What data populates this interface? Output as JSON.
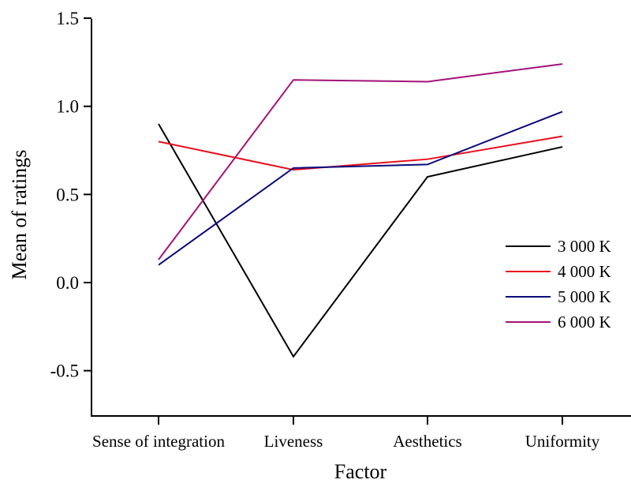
{
  "chart_data": {
    "type": "line",
    "title": "",
    "xlabel": "Factor",
    "ylabel": "Mean of ratings",
    "categories": [
      "Sense of integration",
      "Liveness",
      "Aesthetics",
      "Uniformity"
    ],
    "ylim": [
      -0.76,
      1.5
    ],
    "yticks": [
      1.5,
      1.0,
      0.5,
      0.0,
      -0.5
    ],
    "ytick_labels": [
      "1.5",
      "1.0",
      "0.5",
      "0.0",
      "-0.5"
    ],
    "grid": false,
    "legend_position": "right",
    "series": [
      {
        "name": "3 000 K",
        "color": "#000000",
        "values": [
          0.9,
          -0.42,
          0.6,
          0.77
        ]
      },
      {
        "name": "4 000 K",
        "color": "#e8101e",
        "values": [
          0.8,
          0.64,
          0.7,
          0.83
        ]
      },
      {
        "name": "5 000 K",
        "color": "#0a0a7a",
        "values": [
          0.1,
          0.65,
          0.67,
          0.97
        ]
      },
      {
        "name": "6 000 K",
        "color": "#a3127a",
        "values": [
          0.13,
          1.15,
          1.14,
          1.24
        ]
      }
    ]
  }
}
